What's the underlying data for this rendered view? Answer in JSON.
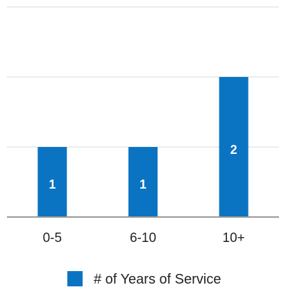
{
  "chart_data": {
    "type": "bar",
    "categories": [
      "0-5",
      "6-10",
      "10+"
    ],
    "series": [
      {
        "name": "# of Years of Service",
        "values": [
          1,
          1,
          2
        ],
        "color": "#0a74c2"
      }
    ],
    "ylim": [
      0,
      3
    ],
    "grid": true,
    "legend": "bottom",
    "data_labels": [
      "1",
      "1",
      "2"
    ]
  }
}
